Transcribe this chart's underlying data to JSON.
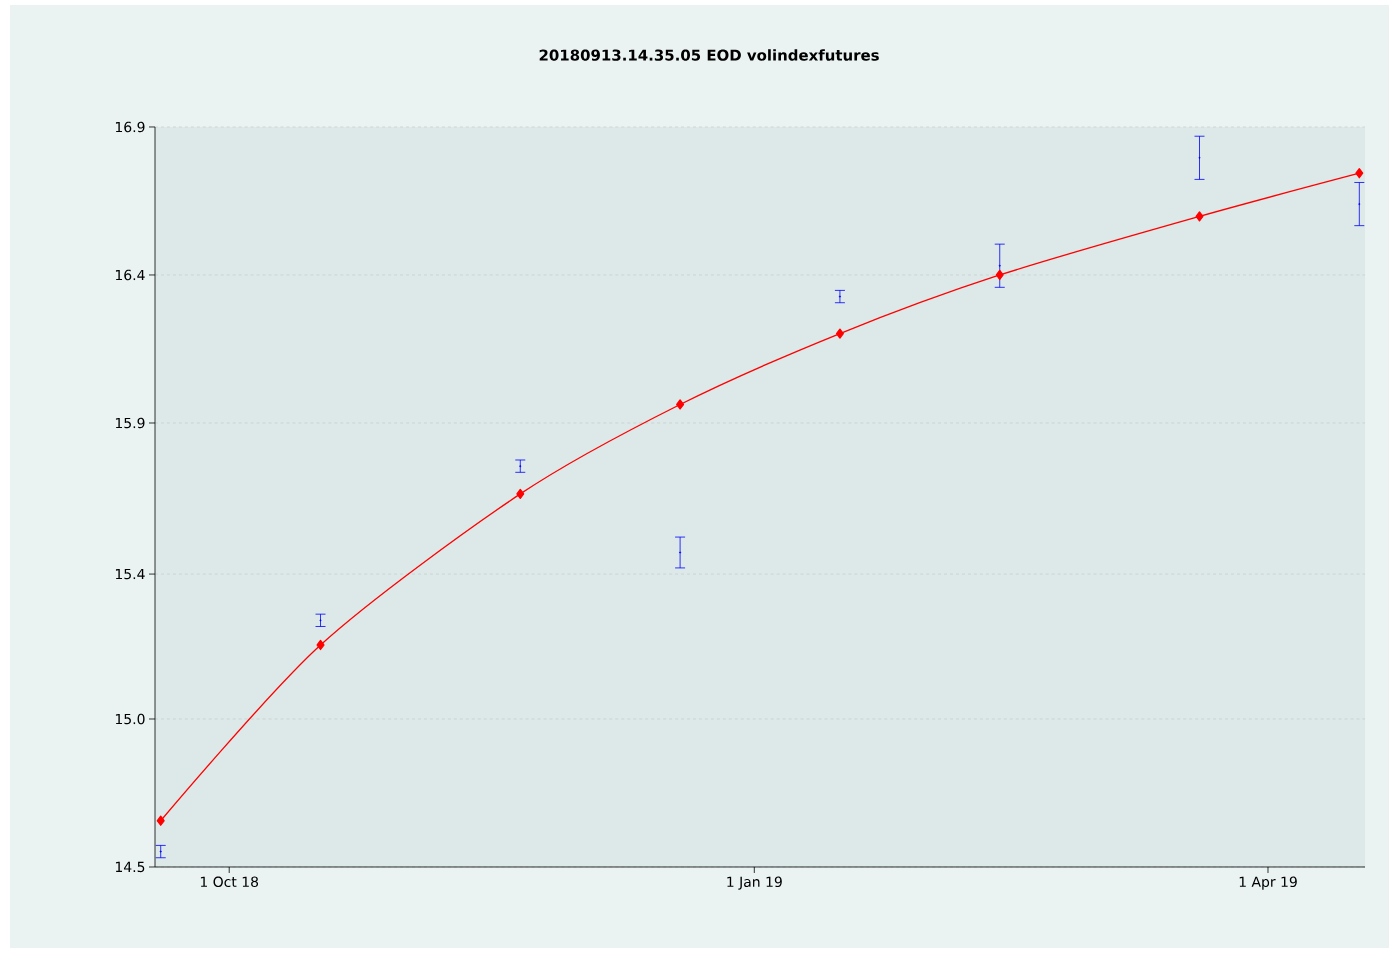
{
  "chart_data": {
    "type": "line",
    "title": "20180913.14.35.05  EOD volindexfutures",
    "xlim": [
      "2018-09-18",
      "2019-04-18"
    ],
    "xticks": [
      {
        "value": "2018-10-01",
        "label": "1 Oct 18"
      },
      {
        "value": "2019-01-01",
        "label": "1 Jan 19"
      },
      {
        "value": "2019-04-01",
        "label": "1 Apr 19"
      }
    ],
    "ylim": [
      14.5,
      16.9
    ],
    "yticks": [
      14.5,
      {
        "value": 14.98,
        "label": "15.0"
      },
      {
        "value": 15.45,
        "label": "15.4"
      },
      {
        "value": 15.94,
        "label": "15.9"
      },
      {
        "value": 16.42,
        "label": "16.4"
      },
      16.9
    ],
    "grid": "y",
    "series": [
      {
        "color": "#ff0000",
        "marker": "diamond",
        "line_style": "solid",
        "x": [
          "2018-09-19",
          "2018-10-17",
          "2018-11-21",
          "2018-12-19",
          "2019-01-16",
          "2019-02-13",
          "2019-03-20",
          "2019-04-17"
        ],
        "values": [
          14.65,
          15.22,
          15.71,
          16.0,
          16.23,
          16.42,
          16.61,
          16.75
        ]
      },
      {
        "type": "scatter",
        "color": "#0000ff",
        "marker": "none",
        "x": [
          "2018-09-19",
          "2018-10-17",
          "2018-11-21",
          "2018-12-19",
          "2019-01-16",
          "2019-02-13",
          "2019-03-20",
          "2019-04-17"
        ],
        "values": [
          14.55,
          15.3,
          15.8,
          15.52,
          16.35,
          16.45,
          16.8,
          16.65
        ],
        "errors": [
          0.02,
          0.02,
          0.02,
          0.05,
          0.02,
          0.07,
          0.07,
          0.07
        ]
      }
    ]
  }
}
